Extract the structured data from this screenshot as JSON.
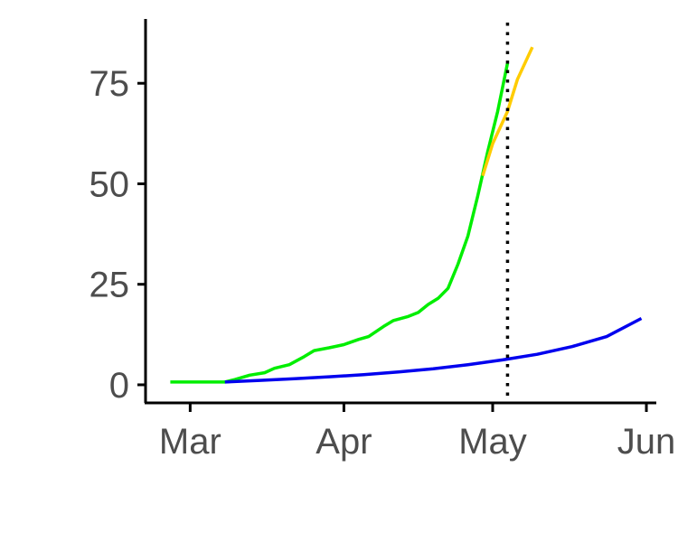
{
  "chart_data": {
    "type": "line",
    "title": "",
    "xlabel": "",
    "ylabel": "",
    "x_axis": {
      "ticks": [
        {
          "date": "2020-03-01",
          "label": "Mar"
        },
        {
          "date": "2020-04-01",
          "label": "Apr"
        },
        {
          "date": "2020-05-01",
          "label": "May"
        },
        {
          "date": "2020-06-01",
          "label": "Jun"
        }
      ],
      "range": [
        "2020-02-21",
        "2020-06-03"
      ]
    },
    "y_axis": {
      "ticks": [
        0,
        25,
        50,
        75
      ],
      "labels": [
        "0",
        "25",
        "50",
        "75"
      ],
      "range": [
        -4.5,
        91
      ]
    },
    "grid": false,
    "legend": "none",
    "vline": {
      "date": "2020-05-04",
      "style": "dotted",
      "color": "#000000"
    },
    "series": [
      {
        "color": "#00ee00",
        "points": [
          [
            "2020-02-26",
            0.7
          ],
          [
            "2020-03-08",
            0.7
          ],
          [
            "2020-03-10",
            1.3
          ],
          [
            "2020-03-13",
            2.4
          ],
          [
            "2020-03-16",
            3.0
          ],
          [
            "2020-03-18",
            4.1
          ],
          [
            "2020-03-21",
            5.0
          ],
          [
            "2020-03-24",
            7.0
          ],
          [
            "2020-03-26",
            8.5
          ],
          [
            "2020-03-29",
            9.2
          ],
          [
            "2020-04-01",
            10.0
          ],
          [
            "2020-04-04",
            11.3
          ],
          [
            "2020-04-06",
            12.0
          ],
          [
            "2020-04-09",
            14.5
          ],
          [
            "2020-04-11",
            16.0
          ],
          [
            "2020-04-14",
            17.0
          ],
          [
            "2020-04-16",
            18.0
          ],
          [
            "2020-04-18",
            20.0
          ],
          [
            "2020-04-20",
            21.5
          ],
          [
            "2020-04-22",
            24.0
          ],
          [
            "2020-04-24",
            30.0
          ],
          [
            "2020-04-26",
            37.0
          ],
          [
            "2020-04-28",
            47.0
          ],
          [
            "2020-04-30",
            58.0
          ],
          [
            "2020-05-02",
            68.0
          ],
          [
            "2020-05-04",
            80.0
          ]
        ]
      },
      {
        "color": "#ffcc00",
        "points": [
          [
            "2020-04-29",
            52.0
          ],
          [
            "2020-05-01",
            60.0
          ],
          [
            "2020-05-04",
            68.0
          ],
          [
            "2020-05-06",
            76.0
          ],
          [
            "2020-05-09",
            84.0
          ]
        ]
      },
      {
        "color": "#0000ee",
        "points": [
          [
            "2020-03-08",
            0.7
          ],
          [
            "2020-03-15",
            1.1
          ],
          [
            "2020-03-22",
            1.5
          ],
          [
            "2020-03-29",
            2.0
          ],
          [
            "2020-04-05",
            2.5
          ],
          [
            "2020-04-12",
            3.2
          ],
          [
            "2020-04-19",
            4.0
          ],
          [
            "2020-04-26",
            5.0
          ],
          [
            "2020-05-03",
            6.2
          ],
          [
            "2020-05-10",
            7.6
          ],
          [
            "2020-05-17",
            9.5
          ],
          [
            "2020-05-24",
            12.0
          ],
          [
            "2020-05-31",
            16.5
          ]
        ]
      }
    ]
  }
}
